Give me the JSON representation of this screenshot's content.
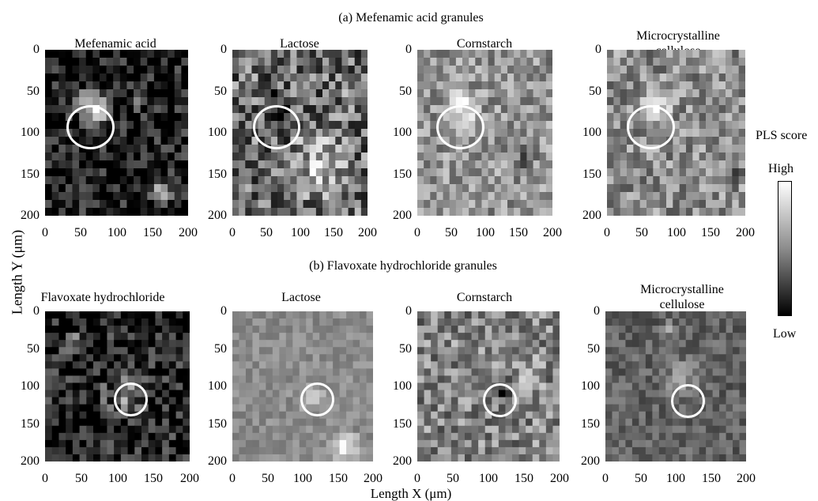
{
  "section_a": {
    "title": "(a) Mefenamic acid  granules"
  },
  "section_b": {
    "title": "(b) Flavoxate hydrochloride granules"
  },
  "axis": {
    "xlabel": "Length X (μm)",
    "ylabel": "Length Y (μm)"
  },
  "ticks": {
    "x": [
      "0",
      "50",
      "100",
      "150",
      "200"
    ],
    "y": [
      "0",
      "50",
      "100",
      "150",
      "200"
    ]
  },
  "colorbar": {
    "title": "PLS score",
    "high": "High",
    "low": "Low",
    "colors": [
      "#ffffff",
      "#8c8c8c",
      "#000000"
    ]
  },
  "panels_a": [
    {
      "label": "Mefenamic acid",
      "label2": ""
    },
    {
      "label": "Lactose",
      "label2": ""
    },
    {
      "label": "Cornstarch",
      "label2": ""
    },
    {
      "label": "Microcrystalline",
      "label2": "cellulose"
    }
  ],
  "panels_b": [
    {
      "label": "Flavoxate hydrochloride",
      "label2": ""
    },
    {
      "label": "Lactose",
      "label2": ""
    },
    {
      "label": "Cornstarch",
      "label2": ""
    },
    {
      "label": "Microcrystalline",
      "label2": "cellulose"
    }
  ]
}
